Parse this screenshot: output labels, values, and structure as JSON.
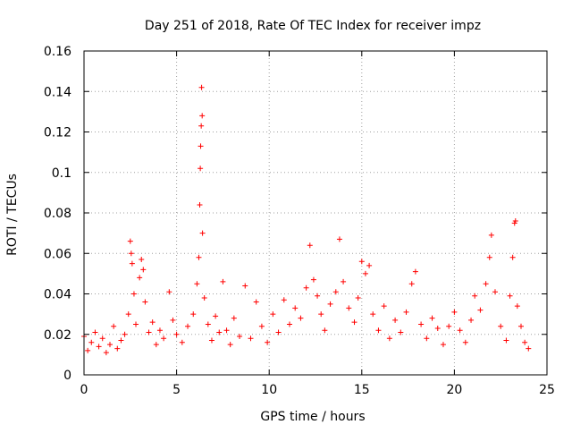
{
  "chart_data": {
    "type": "scatter",
    "title": "Day 251 of 2018, Rate Of TEC Index for receiver impz",
    "xlabel": "GPS time / hours",
    "ylabel": "ROTI / TECUs",
    "xlim": [
      0,
      25
    ],
    "ylim": [
      0,
      0.16
    ],
    "x_ticks": [
      0,
      5,
      10,
      15,
      20,
      25
    ],
    "x_tick_labels": [
      "0",
      "5",
      "10",
      "15",
      "20",
      "25"
    ],
    "y_ticks": [
      0,
      0.02,
      0.04,
      0.06,
      0.08,
      0.1,
      0.12,
      0.14,
      0.16
    ],
    "y_tick_labels": [
      "0",
      "0.02",
      "0.04",
      "0.06",
      "0.08",
      "0.1",
      "0.12",
      "0.14",
      "0.16"
    ],
    "grid": true,
    "marker": "+",
    "series": [
      {
        "name": "ROTI",
        "color": "#ff0000",
        "points": [
          [
            0.0,
            0.019
          ],
          [
            0.2,
            0.012
          ],
          [
            0.4,
            0.016
          ],
          [
            0.6,
            0.021
          ],
          [
            0.8,
            0.014
          ],
          [
            1.0,
            0.018
          ],
          [
            1.2,
            0.011
          ],
          [
            1.4,
            0.015
          ],
          [
            1.6,
            0.024
          ],
          [
            1.8,
            0.013
          ],
          [
            2.0,
            0.017
          ],
          [
            2.2,
            0.02
          ],
          [
            2.4,
            0.03
          ],
          [
            2.5,
            0.066
          ],
          [
            2.55,
            0.06
          ],
          [
            2.6,
            0.055
          ],
          [
            2.7,
            0.04
          ],
          [
            2.8,
            0.025
          ],
          [
            3.0,
            0.048
          ],
          [
            3.1,
            0.057
          ],
          [
            3.2,
            0.052
          ],
          [
            3.3,
            0.036
          ],
          [
            3.5,
            0.021
          ],
          [
            3.7,
            0.026
          ],
          [
            3.9,
            0.015
          ],
          [
            4.1,
            0.022
          ],
          [
            4.3,
            0.018
          ],
          [
            4.6,
            0.041
          ],
          [
            4.8,
            0.027
          ],
          [
            5.0,
            0.02
          ],
          [
            5.3,
            0.016
          ],
          [
            5.6,
            0.024
          ],
          [
            5.9,
            0.03
          ],
          [
            6.1,
            0.045
          ],
          [
            6.2,
            0.058
          ],
          [
            6.25,
            0.084
          ],
          [
            6.28,
            0.102
          ],
          [
            6.3,
            0.113
          ],
          [
            6.33,
            0.123
          ],
          [
            6.35,
            0.142
          ],
          [
            6.38,
            0.128
          ],
          [
            6.4,
            0.07
          ],
          [
            6.5,
            0.038
          ],
          [
            6.7,
            0.025
          ],
          [
            6.9,
            0.017
          ],
          [
            7.1,
            0.029
          ],
          [
            7.3,
            0.021
          ],
          [
            7.5,
            0.046
          ],
          [
            7.7,
            0.022
          ],
          [
            7.9,
            0.015
          ],
          [
            8.1,
            0.028
          ],
          [
            8.4,
            0.019
          ],
          [
            8.7,
            0.044
          ],
          [
            9.0,
            0.018
          ],
          [
            9.3,
            0.036
          ],
          [
            9.6,
            0.024
          ],
          [
            9.9,
            0.016
          ],
          [
            10.2,
            0.03
          ],
          [
            10.5,
            0.021
          ],
          [
            10.8,
            0.037
          ],
          [
            11.1,
            0.025
          ],
          [
            11.4,
            0.033
          ],
          [
            11.7,
            0.028
          ],
          [
            12.0,
            0.043
          ],
          [
            12.2,
            0.064
          ],
          [
            12.4,
            0.047
          ],
          [
            12.6,
            0.039
          ],
          [
            12.8,
            0.03
          ],
          [
            13.0,
            0.022
          ],
          [
            13.3,
            0.035
          ],
          [
            13.6,
            0.041
          ],
          [
            13.8,
            0.067
          ],
          [
            14.0,
            0.046
          ],
          [
            14.3,
            0.033
          ],
          [
            14.6,
            0.026
          ],
          [
            14.8,
            0.038
          ],
          [
            15.0,
            0.056
          ],
          [
            15.2,
            0.05
          ],
          [
            15.4,
            0.054
          ],
          [
            15.6,
            0.03
          ],
          [
            15.9,
            0.022
          ],
          [
            16.2,
            0.034
          ],
          [
            16.5,
            0.018
          ],
          [
            16.8,
            0.027
          ],
          [
            17.1,
            0.021
          ],
          [
            17.4,
            0.031
          ],
          [
            17.7,
            0.045
          ],
          [
            17.9,
            0.051
          ],
          [
            18.2,
            0.025
          ],
          [
            18.5,
            0.018
          ],
          [
            18.8,
            0.028
          ],
          [
            19.1,
            0.023
          ],
          [
            19.4,
            0.015
          ],
          [
            19.7,
            0.024
          ],
          [
            20.0,
            0.031
          ],
          [
            20.3,
            0.022
          ],
          [
            20.6,
            0.016
          ],
          [
            20.9,
            0.027
          ],
          [
            21.1,
            0.039
          ],
          [
            21.4,
            0.032
          ],
          [
            21.7,
            0.045
          ],
          [
            21.9,
            0.058
          ],
          [
            22.0,
            0.069
          ],
          [
            22.2,
            0.041
          ],
          [
            22.5,
            0.024
          ],
          [
            22.8,
            0.017
          ],
          [
            23.0,
            0.039
          ],
          [
            23.15,
            0.058
          ],
          [
            23.25,
            0.075
          ],
          [
            23.3,
            0.076
          ],
          [
            23.4,
            0.034
          ],
          [
            23.6,
            0.024
          ],
          [
            23.8,
            0.016
          ],
          [
            24.0,
            0.013
          ]
        ]
      }
    ]
  }
}
